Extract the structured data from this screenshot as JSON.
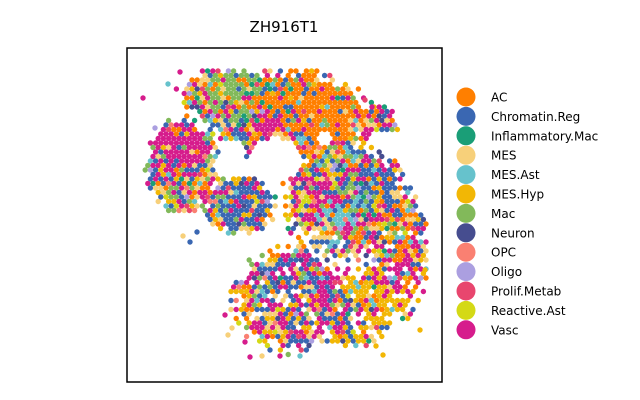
{
  "chart_data": {
    "type": "scatter",
    "title": "ZH916T1",
    "xlabel": "",
    "ylabel": "",
    "grid": false,
    "legend_placement": "right",
    "categories": [
      {
        "name": "AC",
        "color": "#ff7f00"
      },
      {
        "name": "Chromatin.Reg",
        "color": "#3a67b2"
      },
      {
        "name": "Inflammatory.Mac",
        "color": "#1a9e77"
      },
      {
        "name": "MES",
        "color": "#f7d07a"
      },
      {
        "name": "MES.Ast",
        "color": "#66c2cc"
      },
      {
        "name": "MES.Hyp",
        "color": "#f2b705"
      },
      {
        "name": "Mac",
        "color": "#82b95a"
      },
      {
        "name": "Neuron",
        "color": "#464d8f"
      },
      {
        "name": "OPC",
        "color": "#fa8072"
      },
      {
        "name": "Oligo",
        "color": "#ab9fe0"
      },
      {
        "name": "Prolif.Metab",
        "color": "#e8466e"
      },
      {
        "name": "Reactive.Ast",
        "color": "#d4d916"
      },
      {
        "name": "Vasc",
        "color": "#d61c8c"
      }
    ]
  }
}
